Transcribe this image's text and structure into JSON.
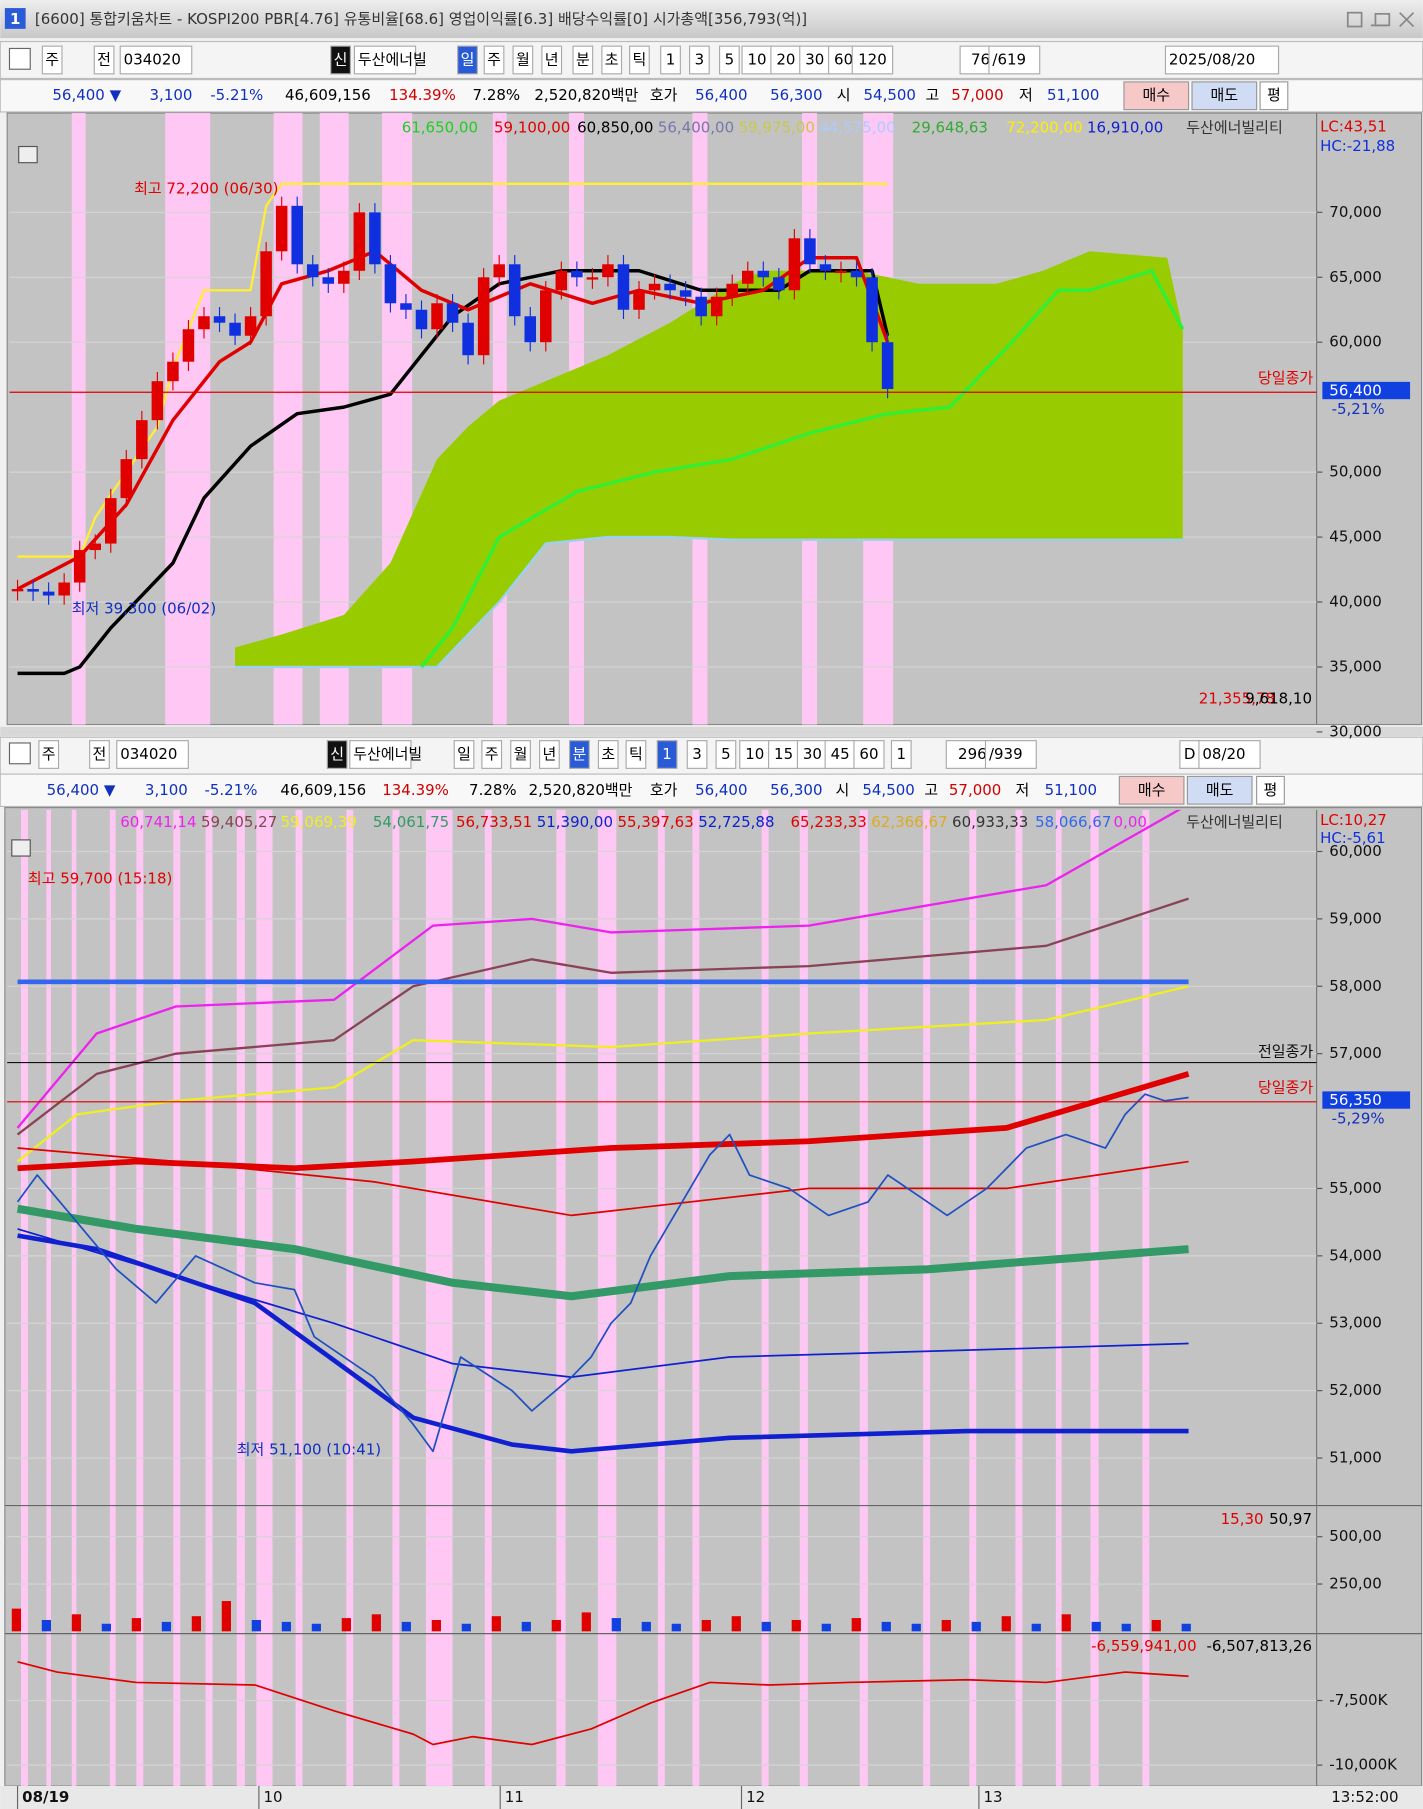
{
  "window": {
    "number": "1",
    "title": "[6600] 통합키움차트 - KOSPI200 PBR[4.76] 유통비율[68.6] 영업이익률[6.3] 배당수익률[0] 시가총액[356,793(억)]"
  },
  "daily_toolbar": {
    "items": [
      "주",
      "전",
      "034020",
      "신",
      "두산에너빌",
      "일",
      "주",
      "월",
      "년",
      "분",
      "초",
      "틱",
      "1",
      "3",
      "5",
      "10",
      "20",
      "30",
      "60",
      "120",
      "76",
      "/619",
      "2025/08/20"
    ]
  },
  "daily_quote": {
    "items": [
      {
        "text": "56,400 ▼",
        "color": "#1030c0"
      },
      {
        "text": "3,100",
        "color": "#1030c0"
      },
      {
        "text": "-5.21%",
        "color": "#1030c0"
      },
      {
        "text": "46,609,156",
        "color": "#000000"
      },
      {
        "text": "134.39%",
        "color": "#d00000"
      },
      {
        "text": "7.28%",
        "color": "#000000"
      },
      {
        "text": "2,520,820백만",
        "color": "#000000"
      },
      {
        "text": "호가",
        "color": "#000000"
      },
      {
        "text": "56,400",
        "color": "#1030c0"
      },
      {
        "text": "56,300",
        "color": "#1030c0"
      },
      {
        "text": "시",
        "color": "#000000"
      },
      {
        "text": "54,500",
        "color": "#1030c0"
      },
      {
        "text": "고",
        "color": "#000000"
      },
      {
        "text": "57,000",
        "color": "#d00000"
      },
      {
        "text": "저",
        "color": "#000000"
      },
      {
        "text": "51,100",
        "color": "#1030c0"
      },
      {
        "text": "매수",
        "color": "#000000"
      },
      {
        "text": "매도",
        "color": "#000000"
      },
      {
        "text": "평",
        "color": "#000000"
      }
    ]
  },
  "daily_chart": {
    "legend": [
      {
        "text": "61,650,00",
        "color": "#22cc22"
      },
      {
        "text": "59,100,00",
        "color": "#e00000"
      },
      {
        "text": "60,850,00",
        "color": "#000000"
      },
      {
        "text": "56,400,00",
        "color": "#7777aa"
      },
      {
        "text": "59,975,00",
        "color": "#c8c84a"
      },
      {
        "text": "44,575,00",
        "color": "#aaccff"
      },
      {
        "text": "29,648,63",
        "color": "#33aa33"
      },
      {
        "text": "72,200,00",
        "color": "#ffee00"
      },
      {
        "text": "16,910,00",
        "color": "#1020d0"
      },
      {
        "text": "두산에너빌리티",
        "color": "#333333"
      }
    ],
    "lc": "LC:43,51",
    "hc": "HC:-21,88",
    "xlim": [
      0,
      75
    ],
    "ylim": [
      30000,
      77500
    ],
    "yticks": [
      {
        "value": 70000,
        "label": "70,000"
      },
      {
        "value": 65000,
        "label": "65,000"
      },
      {
        "value": 60000,
        "label": "60,000"
      },
      {
        "value": 50000,
        "label": "50,000"
      },
      {
        "value": 45000,
        "label": "45,000"
      },
      {
        "value": 40000,
        "label": "40,000"
      },
      {
        "value": 35000,
        "label": "35,000"
      },
      {
        "value": 30000,
        "label": "30,000"
      }
    ],
    "candle_colors": {
      "up": "#e00000",
      "down": "#1030e0"
    },
    "close": {
      "values": [
        41000,
        40800,
        40500,
        41500,
        44000,
        44500,
        48000,
        51000,
        54000,
        57000,
        58500,
        61000,
        62000,
        61500,
        60500,
        62000,
        67000,
        70500,
        66000,
        65000,
        64500,
        65500,
        70000,
        66000,
        63000,
        62500,
        61000,
        63000,
        61500,
        59000,
        65000,
        66000,
        62000,
        60000,
        64000,
        65500,
        65000,
        65000,
        66000,
        62500,
        64000,
        64500,
        64000,
        63500,
        62000,
        63500,
        64500,
        65500,
        65000,
        64000,
        68000,
        66000,
        65500,
        65500,
        65000,
        60000,
        56400
      ]
    },
    "cloud": {
      "color": "#99cc00",
      "x": [
        14,
        17,
        21,
        24,
        27,
        29,
        31,
        34,
        38,
        42,
        46,
        48,
        54,
        58,
        63,
        66,
        69,
        74,
        75
      ],
      "upper": [
        36500,
        37500,
        39000,
        43000,
        51000,
        53500,
        55500,
        57000,
        59000,
        61500,
        64500,
        65500,
        65500,
        64500,
        64500,
        65500,
        67000,
        66500,
        61000
      ],
      "lower": [
        35000,
        35000,
        35000,
        35000,
        35000,
        37500,
        40000,
        44500,
        45000,
        45000,
        44800,
        44800,
        44800,
        44800,
        44800,
        44800,
        44800,
        44800,
        44800
      ]
    },
    "lines": [
      {
        "color": "#ffee33",
        "width": 2,
        "x": [
          0,
          4,
          5,
          9,
          10,
          12,
          15,
          16,
          17,
          56
        ],
        "values": [
          43500,
          43500,
          46500,
          53500,
          58000,
          64000,
          64000,
          70500,
          72200,
          72200
        ]
      },
      {
        "color": "#33ee33",
        "width": 3,
        "x": [
          26,
          28,
          31,
          36,
          41,
          46,
          51,
          56,
          60,
          64,
          67,
          69,
          73,
          75
        ],
        "values": [
          35000,
          38000,
          45000,
          48500,
          50000,
          51000,
          53000,
          54500,
          55000,
          60000,
          64000,
          64000,
          65500,
          61000
        ]
      },
      {
        "color": "#000000",
        "width": 3,
        "x": [
          0,
          3,
          4,
          6,
          10,
          12,
          15,
          18,
          21,
          24,
          26,
          28,
          31,
          35,
          40,
          44,
          49,
          51,
          55,
          56
        ],
        "values": [
          34500,
          34500,
          35000,
          38000,
          43000,
          48000,
          52000,
          54500,
          55000,
          56000,
          59000,
          62000,
          64500,
          65500,
          65500,
          64000,
          64000,
          65500,
          65500,
          60500
        ]
      },
      {
        "color": "#e00000",
        "width": 3,
        "x": [
          0,
          4,
          7,
          10,
          13,
          15,
          17,
          20,
          23,
          26,
          29,
          33,
          37,
          40,
          44,
          48,
          51,
          54,
          56
        ],
        "values": [
          41000,
          43500,
          47500,
          54000,
          58500,
          60000,
          64500,
          65500,
          67000,
          64000,
          62500,
          64500,
          63000,
          64000,
          63000,
          64000,
          66500,
          66500,
          60000
        ]
      }
    ],
    "annotations": {
      "high": "최고 72,200 (06/30)",
      "low": "최저 39,300 (06/02)",
      "close_label": "당일종가",
      "price": "56,400",
      "change": "-5,21%"
    },
    "footer": [
      {
        "text": "21,355,78",
        "color": "#e00000"
      },
      {
        "text": "9,618,10",
        "color": "#000000"
      }
    ]
  },
  "minute_toolbar": {
    "items": [
      "주",
      "전",
      "034020",
      "신",
      "두산에너빌",
      "일",
      "주",
      "월",
      "년",
      "분",
      "초",
      "틱",
      "1",
      "3",
      "5",
      "10",
      "15",
      "30",
      "45",
      "60",
      "1",
      "296",
      "/939",
      "D",
      "08/20"
    ]
  },
  "minute_quote": {
    "items": [
      {
        "text": "56,400 ▼",
        "color": "#1030c0"
      },
      {
        "text": "3,100",
        "color": "#1030c0"
      },
      {
        "text": "-5.21%",
        "color": "#1030c0"
      },
      {
        "text": "46,609,156",
        "color": "#000000"
      },
      {
        "text": "134.39%",
        "color": "#d00000"
      },
      {
        "text": "7.28%",
        "color": "#000000"
      },
      {
        "text": "2,520,820백만",
        "color": "#000000"
      },
      {
        "text": "호가",
        "color": "#000000"
      },
      {
        "text": "56,400",
        "color": "#1030c0"
      },
      {
        "text": "56,300",
        "color": "#1030c0"
      },
      {
        "text": "시",
        "color": "#000000"
      },
      {
        "text": "54,500",
        "color": "#1030c0"
      },
      {
        "text": "고",
        "color": "#000000"
      },
      {
        "text": "57,000",
        "color": "#d00000"
      },
      {
        "text": "저",
        "color": "#000000"
      },
      {
        "text": "51,100",
        "color": "#1030c0"
      },
      {
        "text": "매수",
        "color": "#000000"
      },
      {
        "text": "매도",
        "color": "#000000"
      },
      {
        "text": "평",
        "color": "#000000"
      }
    ]
  },
  "minute_chart": {
    "legend": [
      {
        "text": "60,741,14",
        "color": "#ee22ee"
      },
      {
        "text": "59,405,27",
        "color": "#884455"
      },
      {
        "text": "59,069,39",
        "color": "#eeee22"
      },
      {
        "text": "54,061,75",
        "color": "#339966"
      },
      {
        "text": "56,733,51",
        "color": "#e00000"
      },
      {
        "text": "51,390,00",
        "color": "#1020d0"
      },
      {
        "text": "55,397,63",
        "color": "#e00000"
      },
      {
        "text": "52,725,88",
        "color": "#1020d0"
      },
      {
        "text": "65,233,33",
        "color": "#e00000"
      },
      {
        "text": "62,366,67",
        "color": "#ddaa22"
      },
      {
        "text": "60,933,33",
        "color": "#333333"
      },
      {
        "text": "58,066,67",
        "color": "#3366ee"
      },
      {
        "text": "0,00",
        "color": "#ee22ee"
      },
      {
        "text": "두산에너빌리티",
        "color": "#333333"
      }
    ],
    "lc": "LC:10,27",
    "hc": "HC:-5,61",
    "xlim": [
      0,
      296
    ],
    "ylim": [
      50300,
      60600
    ],
    "yticks": [
      {
        "value": 60000,
        "label": "60,000"
      },
      {
        "value": 59000,
        "label": "59,000"
      },
      {
        "value": 58000,
        "label": "58,000"
      },
      {
        "value": 57000,
        "label": "57,000"
      },
      {
        "value": 55000,
        "label": "55,000"
      },
      {
        "value": 54000,
        "label": "54,000"
      },
      {
        "value": 53000,
        "label": "53,000"
      },
      {
        "value": 52000,
        "label": "52,000"
      },
      {
        "value": 51000,
        "label": "51,000"
      }
    ],
    "lines": [
      {
        "color": "#ee22ee",
        "width": 2,
        "x": [
          0,
          20,
          40,
          80,
          105,
          130,
          150,
          200,
          260,
          296
        ],
        "values": [
          55900,
          57300,
          57700,
          57800,
          58900,
          59000,
          58800,
          58900,
          59500,
          60700
        ]
      },
      {
        "color": "#884455",
        "width": 2,
        "x": [
          0,
          20,
          40,
          80,
          100,
          130,
          150,
          200,
          260,
          296
        ],
        "values": [
          55800,
          56700,
          57000,
          57200,
          58000,
          58400,
          58200,
          58300,
          58600,
          59300
        ]
      },
      {
        "color": "#eeee22",
        "width": 2,
        "x": [
          0,
          15,
          40,
          80,
          100,
          150,
          200,
          260,
          296
        ],
        "values": [
          55400,
          56100,
          56300,
          56500,
          57200,
          57100,
          57300,
          57500,
          58000
        ]
      },
      {
        "color": "#3366ee",
        "width": 4,
        "x": [
          0,
          296
        ],
        "values": [
          58066.67,
          58066.67
        ]
      },
      {
        "color": "#e00000",
        "width": 1.5,
        "x": [
          0,
          40,
          90,
          140,
          200,
          250,
          296
        ],
        "values": [
          55600,
          55400,
          55100,
          54600,
          55000,
          55000,
          55400
        ]
      },
      {
        "color": "#e00000",
        "width": 5,
        "x": [
          0,
          30,
          70,
          100,
          150,
          200,
          250,
          296
        ],
        "values": [
          55300,
          55400,
          55300,
          55400,
          55600,
          55700,
          55900,
          56700
        ]
      },
      {
        "color": "#339966",
        "width": 7,
        "x": [
          0,
          30,
          70,
          110,
          140,
          180,
          230,
          296
        ],
        "values": [
          54700,
          54400,
          54100,
          53600,
          53400,
          53700,
          53800,
          54100
        ]
      },
      {
        "color": "#1020d0",
        "width": 1.5,
        "x": [
          0,
          40,
          80,
          110,
          140,
          180,
          240,
          296
        ],
        "values": [
          54400,
          53700,
          53000,
          52400,
          52200,
          52500,
          52600,
          52700
        ]
      },
      {
        "color": "#1020d0",
        "width": 4,
        "x": [
          0,
          20,
          60,
          100,
          125,
          140,
          180,
          240,
          296
        ],
        "values": [
          54300,
          54100,
          53300,
          51600,
          51200,
          51100,
          51300,
          51400,
          51400
        ]
      },
      {
        "color": "#2050c0",
        "width": 1.5,
        "x": [
          0,
          5,
          15,
          25,
          35,
          45,
          60,
          70,
          75,
          90,
          100,
          105,
          112,
          125,
          130,
          140,
          145,
          150,
          155,
          160,
          165,
          175,
          180,
          185,
          195,
          205,
          215,
          220,
          230,
          235,
          245,
          250,
          255,
          265,
          275,
          280,
          285,
          290,
          296
        ],
        "values": [
          54800,
          55200,
          54500,
          53800,
          53300,
          54000,
          53600,
          53500,
          52800,
          52200,
          51500,
          51100,
          52500,
          52000,
          51700,
          52200,
          52500,
          53000,
          53300,
          54000,
          54500,
          55500,
          55800,
          55200,
          55000,
          54600,
          54800,
          55200,
          54800,
          54600,
          55000,
          55300,
          55600,
          55800,
          55600,
          56100,
          56400,
          56300,
          56350
        ]
      }
    ],
    "annotations": {
      "high": "최고 59,700 (15:18)",
      "low": "최저 51,100 (10:41)",
      "prev_label": "전일종가",
      "close_label": "당일종가",
      "price": "56,350",
      "change": "-5,29%"
    }
  },
  "volume_panel": {
    "legend": [
      {
        "text": "15,30",
        "color": "#e00000"
      },
      {
        "text": "50,97",
        "color": "#000000"
      }
    ],
    "ylim": [
      0,
      650
    ],
    "yticks": [
      {
        "value": 500,
        "label": "500,00"
      },
      {
        "value": 250,
        "label": "250,00"
      }
    ],
    "xlim": [
      0,
      39
    ],
    "colors": {
      "up": "#e00000",
      "down": "#1040e0"
    },
    "values": [
      120,
      60,
      90,
      40,
      70,
      50,
      80,
      160,
      60,
      50,
      40,
      70,
      90,
      50,
      60,
      40,
      80,
      50,
      60,
      100,
      70,
      50,
      40,
      60,
      80,
      50,
      60,
      40,
      70,
      50,
      40,
      60,
      50,
      80,
      40,
      90,
      50,
      40,
      60,
      40
    ]
  },
  "obv_panel": {
    "legend": [
      {
        "text": "-6,559,941,00",
        "color": "#e00000"
      },
      {
        "text": "-6,507,813,26",
        "color": "#000000"
      }
    ],
    "xlim": [
      0,
      296
    ],
    "ylim": [
      -10800000,
      -5100000
    ],
    "yticks": [
      {
        "value": -7500000,
        "label": "-7,500K"
      },
      {
        "value": -10000000,
        "label": "-10,000K"
      }
    ],
    "line": {
      "color": "#e00000",
      "x": [
        0,
        10,
        30,
        60,
        80,
        100,
        105,
        115,
        130,
        145,
        160,
        175,
        190,
        210,
        240,
        260,
        280,
        296
      ],
      "values": [
        -6000000,
        -6400000,
        -6800000,
        -6900000,
        -7900000,
        -8800000,
        -9200000,
        -8900000,
        -9200000,
        -8600000,
        -7600000,
        -6800000,
        -6900000,
        -6800000,
        -6700000,
        -6800000,
        -6400000,
        -6560000
      ]
    }
  },
  "time_axis": {
    "ticks": [
      {
        "value": 0,
        "label": "08/19"
      },
      {
        "value": 61,
        "label": "10"
      },
      {
        "value": 122,
        "label": "11"
      },
      {
        "value": 183,
        "label": "12"
      },
      {
        "value": 243,
        "label": "13"
      }
    ],
    "time": "13:52:00"
  }
}
